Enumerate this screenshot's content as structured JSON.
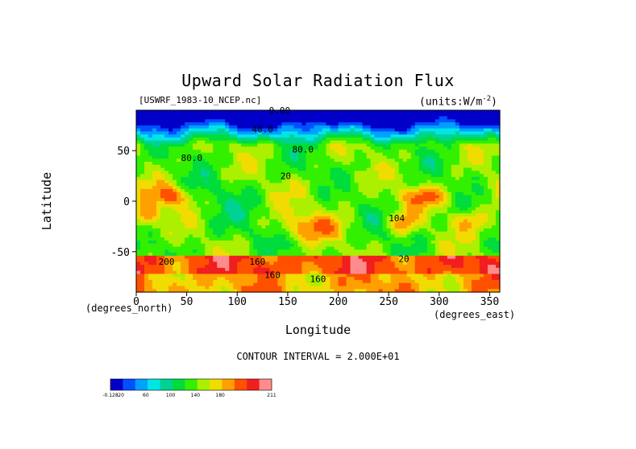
{
  "chart_data": {
    "type": "heatmap",
    "title": "Upward Solar Radiation Flux",
    "file_label": "[USWRF_1983-10_NCEP.nc]",
    "units_label": "(units:W/m^2)",
    "xlabel": "Longitude",
    "ylabel": "Latitude",
    "x_sublabel": "(degrees_east)",
    "y_sublabel": "(degrees_north)",
    "xlim": [
      0,
      360
    ],
    "ylim": [
      -90,
      90
    ],
    "x_ticks": [
      0,
      50,
      100,
      150,
      200,
      250,
      300,
      350
    ],
    "y_ticks": [
      -50,
      0,
      50
    ],
    "contour_interval_text": "CONTOUR INTERVAL = 2.000E+01",
    "contour_labels": [
      {
        "text": "0.00",
        "lon": 142,
        "lat": 87
      },
      {
        "text": "40.0",
        "lon": 125,
        "lat": 68
      },
      {
        "text": "80.0",
        "lon": 165,
        "lat": 48
      },
      {
        "text": "80.0",
        "lon": 55,
        "lat": 40
      },
      {
        "text": "20",
        "lon": 148,
        "lat": 22
      },
      {
        "text": "200",
        "lon": 30,
        "lat": -63
      },
      {
        "text": "160",
        "lon": 120,
        "lat": -63
      },
      {
        "text": "160",
        "lon": 135,
        "lat": -76
      },
      {
        "text": "160",
        "lon": 180,
        "lat": -80
      },
      {
        "text": "20",
        "lon": 265,
        "lat": -60
      },
      {
        "text": "104",
        "lon": 258,
        "lat": -20
      }
    ],
    "colorbar": {
      "colors": [
        "#0000c8",
        "#0050ff",
        "#00a0ff",
        "#00e6e6",
        "#00d296",
        "#00dc3c",
        "#32f000",
        "#aaf000",
        "#f0dc00",
        "#ffa000",
        "#ff5000",
        "#f01e1e",
        "#ff8c8c"
      ],
      "tick_labels": [
        "-0.128",
        "20",
        "60",
        "100",
        "140",
        "180",
        "211"
      ]
    }
  }
}
